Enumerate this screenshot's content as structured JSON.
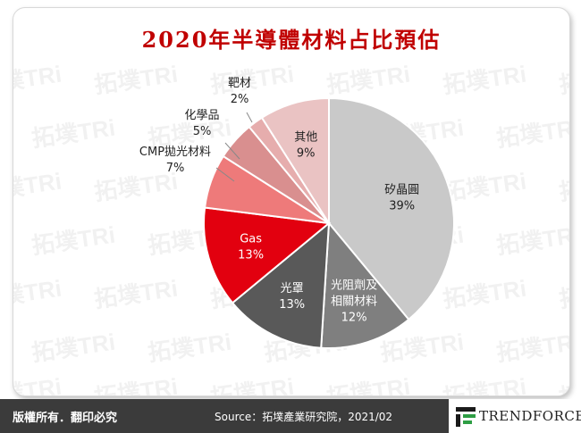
{
  "chart_data": {
    "type": "pie",
    "title": "2020年半導體材料占比預估",
    "slices": [
      {
        "label": "矽晶圓",
        "value": 39,
        "display": "39%",
        "color": "#c9c9c9"
      },
      {
        "label": "光阻劑及相關材料",
        "label_lines": [
          "光阻劑及",
          "相關材料"
        ],
        "value": 12,
        "display": "12%",
        "color": "#7f7f7f"
      },
      {
        "label": "光罩",
        "value": 13,
        "display": "13%",
        "color": "#595959"
      },
      {
        "label": "Gas",
        "value": 13,
        "display": "13%",
        "color": "#e2000f"
      },
      {
        "label": "CMP拋光材料",
        "value": 7,
        "display": "7%",
        "color": "#ee7a7a"
      },
      {
        "label": "化學品",
        "value": 5,
        "display": "5%",
        "color": "#d98f8f"
      },
      {
        "label": "靶材",
        "value": 2,
        "display": "2%",
        "color": "#e6adad"
      },
      {
        "label": "其他",
        "value": 9,
        "display": "9%",
        "color": "#eac3c3"
      }
    ]
  },
  "watermark_text": "拓墣TRi",
  "footer": {
    "copyright": "版權所有．翻印必究",
    "source": "Source：拓墣產業研究院，2021/02",
    "logo_text": "TRENDFORCE"
  },
  "colors": {
    "title": "#c00000",
    "footer_bg": "#3b3b3b"
  }
}
